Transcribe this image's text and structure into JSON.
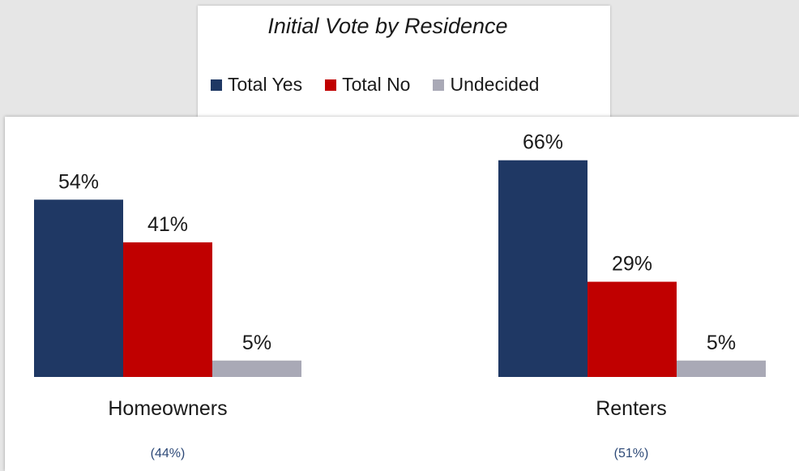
{
  "chart_data": {
    "type": "bar",
    "title": "Initial Vote by Residence",
    "categories": [
      "Homeowners",
      "Renters"
    ],
    "category_shares": [
      "(44%)",
      "(51%)"
    ],
    "series": [
      {
        "name": "Total Yes",
        "color": "#1f3864",
        "values": [
          54,
          66
        ],
        "labels": [
          "54%",
          "66%"
        ]
      },
      {
        "name": "Total No",
        "color": "#c00000",
        "values": [
          41,
          29
        ],
        "labels": [
          "41%",
          "29%"
        ]
      },
      {
        "name": "Undecided",
        "color": "#a9a9b6",
        "values": [
          5,
          5
        ],
        "labels": [
          "5%",
          "5%"
        ]
      }
    ],
    "ylim": [
      0,
      100
    ],
    "grid": false,
    "legend_position": "top"
  }
}
